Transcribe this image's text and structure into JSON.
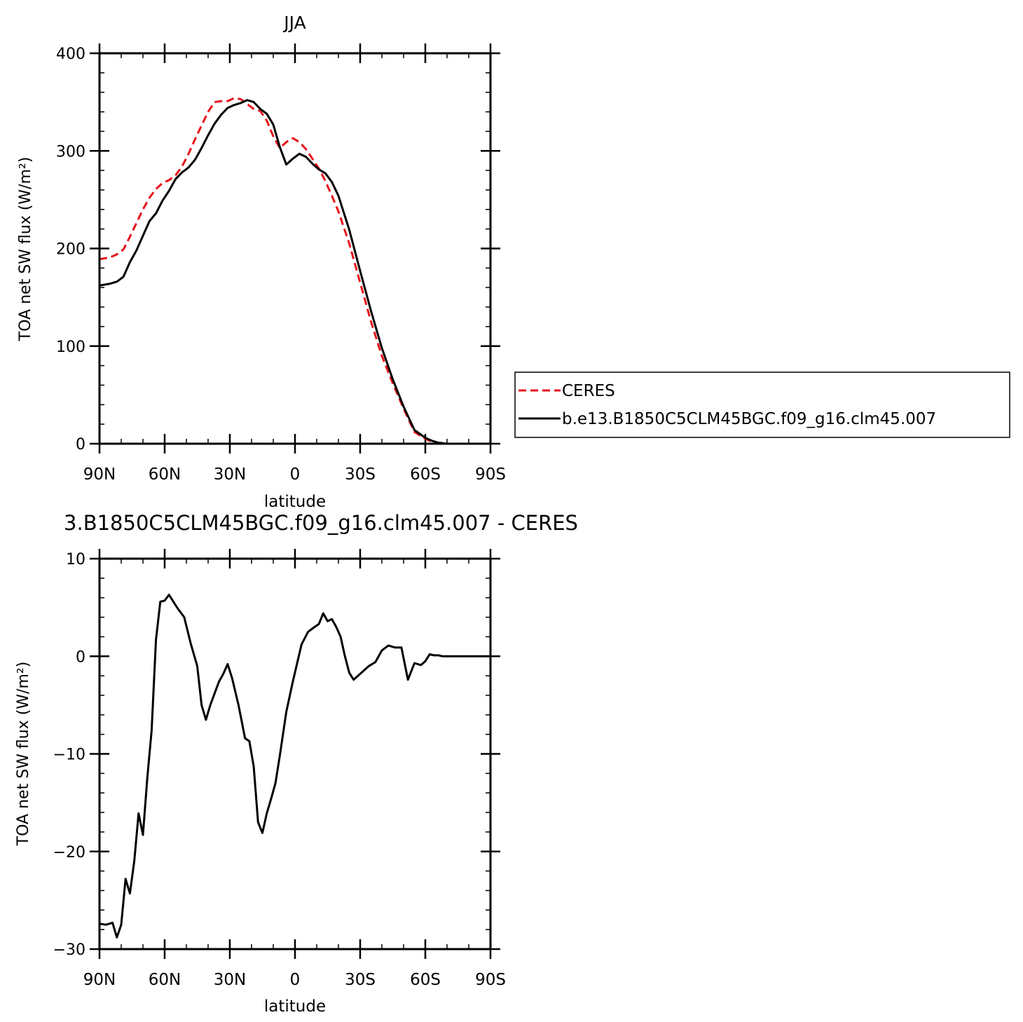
{
  "colors": {
    "ceres": "#e8141b",
    "model": "#000000"
  },
  "chart_data": [
    {
      "type": "line",
      "title": "JJA",
      "xlabel": "latitude",
      "ylabel": "TOA net SW flux (W/m²)",
      "ylim": [
        0,
        400
      ],
      "xlim": [
        90,
        -90
      ],
      "xticks": [
        90,
        60,
        30,
        0,
        -30,
        -60,
        -90
      ],
      "xtick_labels": [
        "90N",
        "60N",
        "30N",
        "0",
        "30S",
        "60S",
        "90S"
      ],
      "yticks": [
        0,
        100,
        200,
        300,
        400
      ],
      "ytick_labels": [
        "0",
        "100",
        "200",
        "300",
        "400"
      ],
      "legend": {
        "placement": "right-outside",
        "entries": [
          "CERES",
          "b.e13.B1850C5CLM45BGC.f09_g16.clm45.007"
        ]
      },
      "series": [
        {
          "name": "CERES",
          "style": "dashed",
          "x": [
            90,
            85,
            82,
            79,
            76,
            73,
            70,
            67,
            64,
            61,
            58,
            55,
            52,
            49,
            46,
            43,
            40,
            37,
            34,
            31,
            28,
            25,
            22,
            19,
            16,
            13,
            10,
            7,
            4,
            1,
            -2,
            -5,
            -8,
            -11,
            -14,
            -17,
            -20,
            -25,
            -30,
            -35,
            -40,
            -45,
            -50,
            -55,
            -60,
            -63,
            -66,
            -70,
            -75,
            -80,
            -85,
            -90
          ],
          "values": [
            189,
            191,
            194,
            199,
            212,
            226,
            240,
            252,
            261,
            267,
            270,
            275,
            284,
            297,
            312,
            326,
            340,
            350,
            351,
            351,
            354,
            353,
            348,
            343,
            341,
            331,
            315,
            303,
            309,
            313,
            309,
            302,
            292,
            282,
            269,
            254,
            238,
            205,
            165,
            125,
            90,
            62,
            36,
            12,
            5,
            2,
            1,
            0,
            0,
            0,
            0,
            0
          ]
        },
        {
          "name": "b.e13.B1850C5CLM45BGC.f09_g16.clm45.007",
          "style": "solid",
          "x": [
            90,
            85,
            82,
            79,
            76,
            73,
            70,
            67,
            64,
            61,
            58,
            55,
            52,
            49,
            46,
            43,
            40,
            37,
            34,
            31,
            28,
            25,
            22,
            19,
            16,
            13,
            10,
            7,
            4,
            1,
            -2,
            -5,
            -8,
            -11,
            -14,
            -17,
            -20,
            -25,
            -30,
            -35,
            -40,
            -45,
            -50,
            -55,
            -60,
            -63,
            -66,
            -70,
            -75,
            -80,
            -85,
            -90
          ],
          "values": [
            162,
            164,
            166,
            171,
            186,
            198,
            213,
            228,
            236,
            249,
            259,
            271,
            278,
            283,
            291,
            303,
            316,
            328,
            337,
            344,
            347,
            349,
            352,
            350,
            343,
            338,
            327,
            304,
            286,
            292,
            297,
            294,
            287,
            281,
            277,
            268,
            254,
            219,
            177,
            136,
            98,
            66,
            38,
            14,
            6,
            3,
            1,
            0,
            0,
            0,
            0,
            0
          ]
        }
      ]
    },
    {
      "type": "line",
      "title": "3.B1850C5CLM45BGC.f09_g16.clm45.007 - CERES",
      "xlabel": "latitude",
      "ylabel": "TOA net SW flux (W/m²)",
      "ylim": [
        -30,
        10
      ],
      "xlim": [
        90,
        -90
      ],
      "xticks": [
        90,
        60,
        30,
        0,
        -30,
        -60,
        -90
      ],
      "xtick_labels": [
        "90N",
        "60N",
        "30N",
        "0",
        "30S",
        "60S",
        "90S"
      ],
      "yticks": [
        -30,
        -20,
        -10,
        0,
        10
      ],
      "ytick_labels": [
        "−30",
        "−20",
        "−10",
        "0",
        "10"
      ],
      "series": [
        {
          "style": "solid",
          "x": [
            90,
            87,
            84,
            82,
            80,
            78,
            76,
            74,
            72,
            70,
            68,
            66,
            64,
            62,
            60,
            58,
            56,
            54,
            51,
            48,
            45,
            43,
            41,
            39,
            37,
            35,
            33,
            31,
            29,
            26,
            23,
            21,
            19,
            17,
            15,
            13,
            11,
            9,
            7,
            4,
            1,
            -3,
            -6,
            -9,
            -11,
            -13,
            -15,
            -17,
            -19,
            -21,
            -23,
            -25,
            -27,
            -29,
            -31,
            -34,
            -37,
            -40,
            -43,
            -46,
            -49,
            -52,
            -55,
            -58,
            -60,
            -62,
            -64,
            -66,
            -68,
            -70,
            -73,
            -78,
            -84,
            -90
          ],
          "values": [
            -27.4,
            -27.5,
            -27.3,
            -28.8,
            -27.5,
            -22.8,
            -24.3,
            -21.0,
            -16.1,
            -18.3,
            -12.5,
            -7.6,
            1.7,
            5.6,
            5.7,
            6.3,
            5.6,
            4.9,
            4.0,
            1.3,
            -1.0,
            -5.0,
            -6.5,
            -5.0,
            -3.8,
            -2.6,
            -1.8,
            -0.8,
            -2.2,
            -5.0,
            -8.4,
            -8.7,
            -11.3,
            -17.0,
            -18.1,
            -16.1,
            -14.6,
            -13.0,
            -10.2,
            -5.7,
            -2.6,
            1.2,
            2.5,
            3.0,
            3.3,
            4.4,
            3.6,
            3.8,
            3.0,
            2.0,
            0.0,
            -1.7,
            -2.4,
            -2.0,
            -1.6,
            -1.0,
            -0.6,
            0.6,
            1.1,
            0.9,
            0.9,
            -2.4,
            -0.7,
            -0.9,
            -0.5,
            0.2,
            0.1,
            0.1,
            0.0,
            0.0,
            0.0,
            0.0,
            0.0,
            0.0
          ]
        }
      ]
    }
  ]
}
